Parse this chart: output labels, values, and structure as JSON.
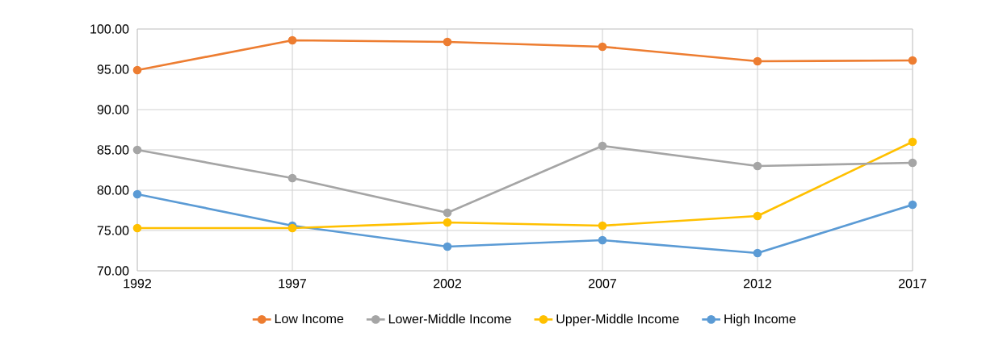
{
  "chart_data": {
    "type": "line",
    "x": [
      1992,
      1997,
      2002,
      2007,
      2012,
      2017
    ],
    "xlim": [
      1992,
      2017
    ],
    "xticks": [
      1992,
      1997,
      2002,
      2007,
      2012,
      2017
    ],
    "ylim": [
      70,
      100
    ],
    "yticks": [
      {
        "value": 70,
        "label": "70.00"
      },
      {
        "value": 75,
        "label": "75.00"
      },
      {
        "value": 80,
        "label": "80.00"
      },
      {
        "value": 85,
        "label": "85.00"
      },
      {
        "value": 90,
        "label": "90.00"
      },
      {
        "value": 95,
        "label": "95.00"
      },
      {
        "value": 100,
        "label": "100.00"
      }
    ],
    "grid": true,
    "legend": "bottom",
    "marker": "circle",
    "line_style": "solid",
    "series": [
      {
        "name": "Low Income",
        "color": "#ed7d31",
        "values": [
          94.9,
          98.6,
          98.4,
          97.8,
          96.0,
          96.1
        ]
      },
      {
        "name": "Lower-Middle Income",
        "color": "#a5a5a5",
        "values": [
          85.0,
          81.5,
          77.2,
          85.5,
          83.0,
          83.4
        ]
      },
      {
        "name": "Upper-Middle Income",
        "color": "#ffc000",
        "values": [
          75.3,
          75.3,
          76.0,
          75.6,
          76.8,
          86.0
        ]
      },
      {
        "name": "High Income",
        "color": "#5b9bd5",
        "values": [
          79.5,
          75.6,
          73.0,
          73.8,
          72.2,
          78.2
        ]
      }
    ]
  }
}
